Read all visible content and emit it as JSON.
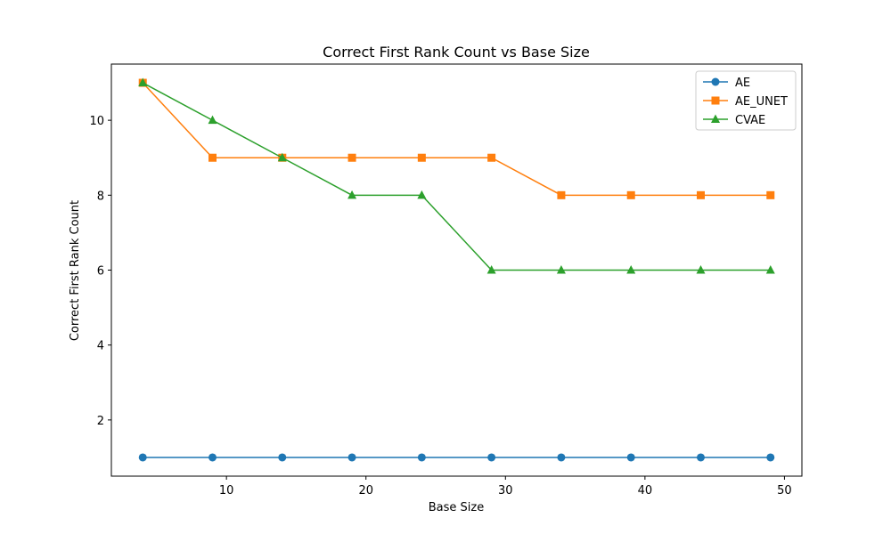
{
  "chart_data": {
    "type": "line",
    "title": "Correct First Rank Count vs Base Size",
    "xlabel": "Base Size",
    "ylabel": "Correct First Rank Count",
    "xlim": [
      1.75,
      51.25
    ],
    "ylim": [
      0.5,
      11.5
    ],
    "xticks": [
      10,
      20,
      30,
      40,
      50
    ],
    "yticks": [
      2,
      4,
      6,
      8,
      10
    ],
    "grid": false,
    "legend_position": "top-right",
    "x": [
      4,
      9,
      14,
      19,
      24,
      29,
      34,
      39,
      44,
      49
    ],
    "series": [
      {
        "name": "AE",
        "color": "#1f77b4",
        "marker": "circle",
        "values": [
          1,
          1,
          1,
          1,
          1,
          1,
          1,
          1,
          1,
          1
        ]
      },
      {
        "name": "AE_UNET",
        "color": "#ff7f0e",
        "marker": "square",
        "values": [
          11,
          9,
          9,
          9,
          9,
          9,
          8,
          8,
          8,
          8
        ]
      },
      {
        "name": "CVAE",
        "color": "#2ca02c",
        "marker": "triangle",
        "values": [
          11,
          10,
          9,
          8,
          8,
          6,
          6,
          6,
          6,
          6
        ]
      }
    ]
  }
}
